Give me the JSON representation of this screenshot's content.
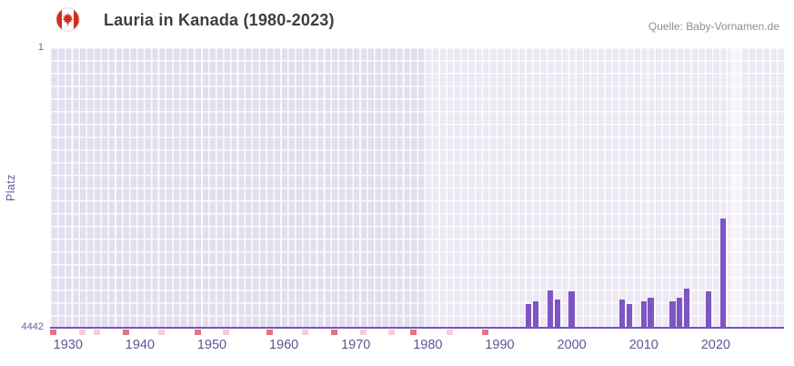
{
  "header": {
    "title": "Lauria in Kanada (1980-2023)",
    "source": "Quelle: Baby-Vornamen.de"
  },
  "chart_data": {
    "type": "bar",
    "title": "Lauria in Kanada (1980-2023)",
    "xlabel": "",
    "ylabel": "Platz",
    "y_axis_inverted": true,
    "ylim": [
      1,
      4442
    ],
    "y_ticks": [
      "1",
      "4442"
    ],
    "xlim": [
      1927.5,
      2029.5
    ],
    "x_ticks": [
      1930,
      1940,
      1950,
      1960,
      1970,
      1980,
      1990,
      2000,
      2010,
      2020
    ],
    "grid": true,
    "legend": false,
    "bar_color": "#7d55c4",
    "highlight_region": {
      "from_year": 1979.5,
      "to_year": 2029.5
    },
    "highlight_band": {
      "from_year": 2022,
      "to_year": 2023.5
    },
    "categories": [
      1994,
      1995,
      1997,
      1998,
      2000,
      2007,
      2008,
      2010,
      2011,
      2014,
      2015,
      2016,
      2019,
      2021
    ],
    "values": [
      4070,
      4020,
      3850,
      3995,
      3865,
      3995,
      4065,
      4025,
      3965,
      4025,
      3965,
      3820,
      3865,
      2710
    ],
    "no_data_marks": {
      "colors": {
        "dark": "#e5747f",
        "light": "#f7ccd9"
      },
      "marks": [
        {
          "year": 1928,
          "shade": "dark"
        },
        {
          "year": 1932,
          "shade": "light"
        },
        {
          "year": 1934,
          "shade": "light"
        },
        {
          "year": 1938,
          "shade": "dark"
        },
        {
          "year": 1943,
          "shade": "light"
        },
        {
          "year": 1948,
          "shade": "dark"
        },
        {
          "year": 1952,
          "shade": "light"
        },
        {
          "year": 1958,
          "shade": "dark"
        },
        {
          "year": 1963,
          "shade": "light"
        },
        {
          "year": 1967,
          "shade": "dark"
        },
        {
          "year": 1971,
          "shade": "light"
        },
        {
          "year": 1975,
          "shade": "light"
        },
        {
          "year": 1978,
          "shade": "dark"
        },
        {
          "year": 1983,
          "shade": "light"
        },
        {
          "year": 1988,
          "shade": "dark"
        }
      ]
    }
  },
  "colors": {
    "plot_background": "#e3deef",
    "grid_line": "#ffffff",
    "axis_line": "#7a52c0",
    "bar": "#7d55c4",
    "tick_label": "#5e5494",
    "title_text": "#3f3f3f",
    "source_text": "#8f8f8f",
    "flag_red": "#d52b1e"
  }
}
